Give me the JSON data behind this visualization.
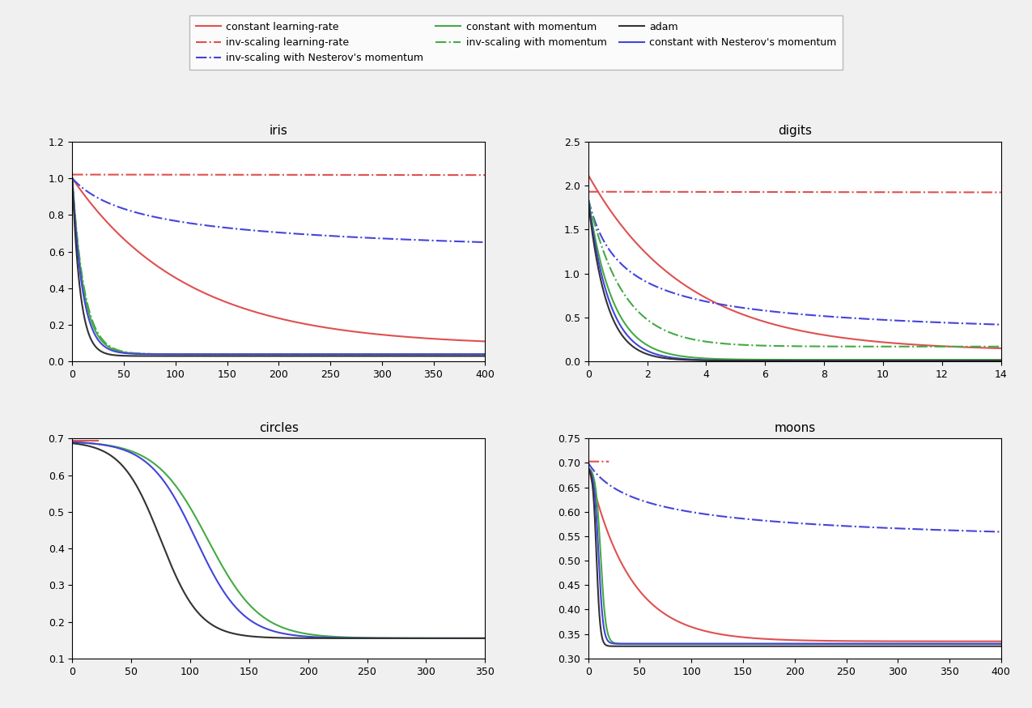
{
  "legend_entries": [
    {
      "label": "constant learning-rate",
      "color": "#e05050",
      "linestyle": "-"
    },
    {
      "label": "inv-scaling learning-rate",
      "color": "#e05050",
      "linestyle": "-."
    },
    {
      "label": "inv-scaling with Nesterov's momentum",
      "color": "#4444dd",
      "linestyle": "-."
    },
    {
      "label": "constant with momentum",
      "color": "#44aa44",
      "linestyle": "-"
    },
    {
      "label": "inv-scaling with momentum",
      "color": "#44aa44",
      "linestyle": "-."
    },
    {
      "label": "adam",
      "color": "#333333",
      "linestyle": "-"
    },
    {
      "label": "constant with Nesterov's momentum",
      "color": "#4444dd",
      "linestyle": "-"
    }
  ],
  "subplots": [
    {
      "title": "iris",
      "xlim": [
        0,
        400
      ],
      "ylim": [
        0.0,
        1.2
      ],
      "yticks": [
        0.0,
        0.2,
        0.4,
        0.6,
        0.8,
        1.0,
        1.2
      ],
      "xticks": [
        0,
        50,
        100,
        150,
        200,
        250,
        300,
        350,
        400
      ]
    },
    {
      "title": "digits",
      "xlim": [
        0,
        14
      ],
      "ylim": [
        0.0,
        2.5
      ],
      "yticks": [
        0.0,
        0.5,
        1.0,
        1.5,
        2.0,
        2.5
      ],
      "xticks": [
        0,
        2,
        4,
        6,
        8,
        10,
        12,
        14
      ]
    },
    {
      "title": "circles",
      "xlim": [
        0,
        350
      ],
      "ylim": [
        0.1,
        0.7
      ],
      "yticks": [
        0.1,
        0.2,
        0.3,
        0.4,
        0.5,
        0.6,
        0.7
      ],
      "xticks": [
        0,
        50,
        100,
        150,
        200,
        250,
        300,
        350
      ]
    },
    {
      "title": "moons",
      "xlim": [
        0,
        400
      ],
      "ylim": [
        0.3,
        0.75
      ],
      "yticks": [
        0.3,
        0.35,
        0.4,
        0.45,
        0.5,
        0.55,
        0.6,
        0.65,
        0.7,
        0.75
      ],
      "xticks": [
        0,
        50,
        100,
        150,
        200,
        250,
        300,
        350,
        400
      ]
    }
  ],
  "red": "#e05050",
  "green": "#44aa44",
  "blue": "#4444dd",
  "black": "#333333",
  "background_color": "#ffffff",
  "figure_facecolor": "#f0f0f0"
}
